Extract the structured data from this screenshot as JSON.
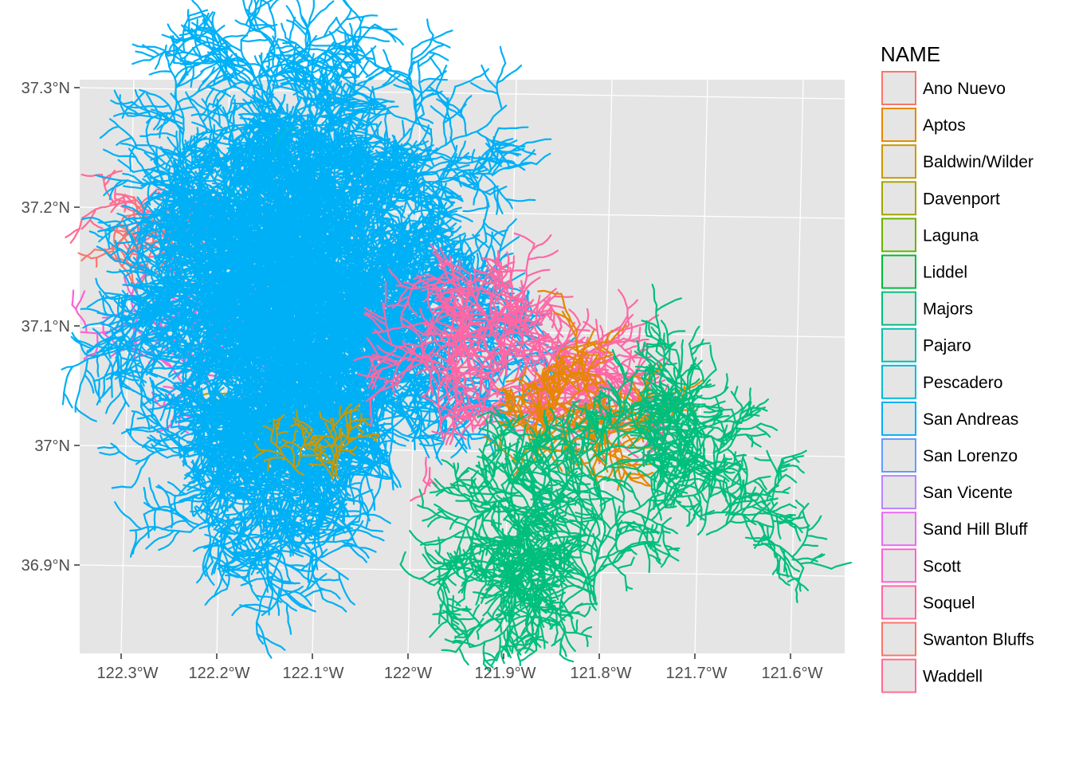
{
  "chart_data": {
    "type": "map",
    "legend": {
      "title": "NAME",
      "placement": "right",
      "entries": [
        {
          "name": "Ano Nuevo",
          "color": "#F8766D"
        },
        {
          "name": "Aptos",
          "color": "#E58700"
        },
        {
          "name": "Baldwin/Wilder",
          "color": "#C99800"
        },
        {
          "name": "Davenport",
          "color": "#A3A500"
        },
        {
          "name": "Laguna",
          "color": "#6BB100"
        },
        {
          "name": "Liddel",
          "color": "#00BA38"
        },
        {
          "name": "Majors",
          "color": "#00BF7D"
        },
        {
          "name": "Pajaro",
          "color": "#00C0AF"
        },
        {
          "name": "Pescadero",
          "color": "#00BCD8"
        },
        {
          "name": "San Andreas",
          "color": "#00B0F6"
        },
        {
          "name": "San Lorenzo",
          "color": "#619CFF"
        },
        {
          "name": "San Vicente",
          "color": "#B983FF"
        },
        {
          "name": "Sand Hill Bluff",
          "color": "#E76BF3"
        },
        {
          "name": "Scott",
          "color": "#FD61D1"
        },
        {
          "name": "Soquel",
          "color": "#FF67A4"
        },
        {
          "name": "Swanton Bluffs",
          "color": "#F8766D"
        },
        {
          "name": "Waddell",
          "color": "#FF6C91"
        }
      ]
    },
    "x_ticks": [
      "122.3°W",
      "122.2°W",
      "122.1°W",
      "122°W",
      "121.9°W",
      "121.8°W",
      "121.7°W",
      "121.6°W"
    ],
    "y_ticks": [
      "37.3°N",
      "37.2°N",
      "37.1°N",
      "37°N",
      "36.9°N"
    ],
    "x_range": [
      -122.35,
      -121.56
    ],
    "y_range": [
      36.83,
      37.3
    ],
    "grid": true,
    "panel_background": "#E5E5E5"
  }
}
